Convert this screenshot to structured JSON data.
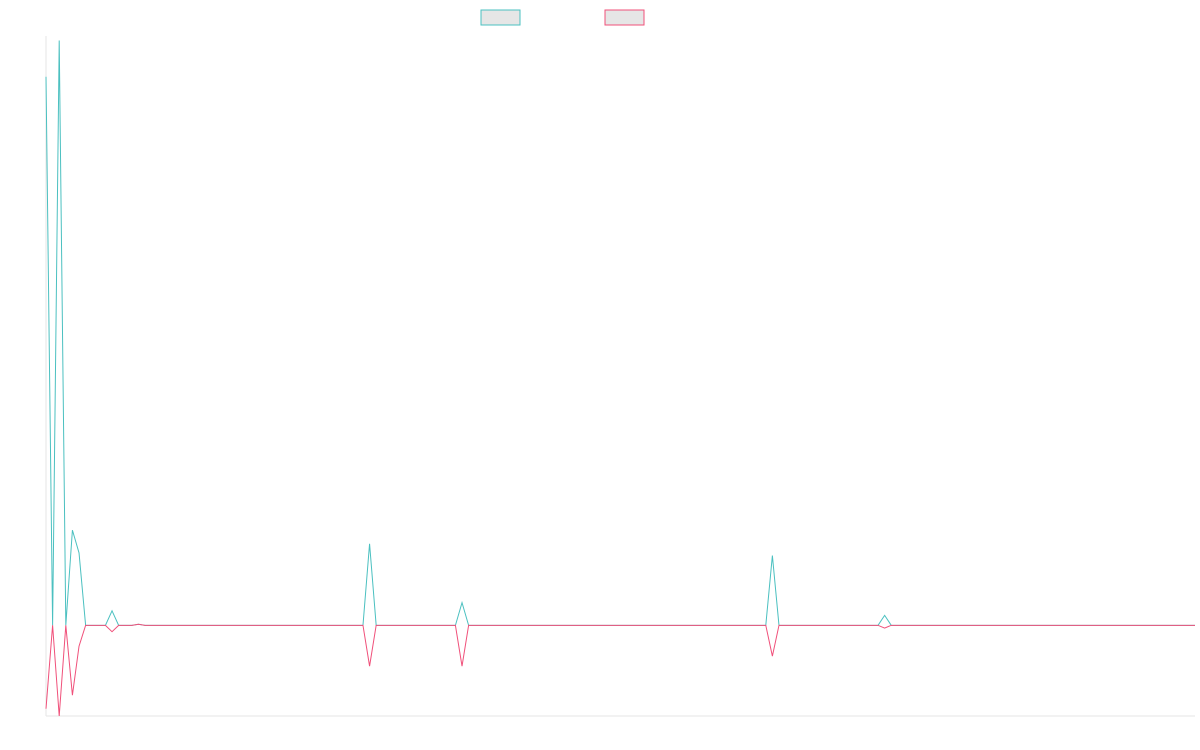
{
  "chart_data": {
    "type": "line",
    "title": "",
    "xlabel": "",
    "ylabel": "",
    "grid": false,
    "legend_position": "top-center",
    "ylim": [
      -100,
      650
    ],
    "series": [
      {
        "color": "#4bc0c0",
        "legend_fill": "#e6e6e6",
        "values": [
          605,
          0,
          645,
          0,
          105,
          80,
          0,
          0,
          0,
          0,
          16,
          0,
          0,
          0,
          1.2,
          0,
          0,
          0,
          0,
          0,
          0,
          0,
          0,
          0,
          0,
          0,
          0,
          0,
          0,
          0,
          0,
          0,
          0,
          0,
          0,
          0,
          0,
          0,
          0,
          0,
          0,
          0,
          0,
          0,
          0,
          0,
          0,
          0,
          0,
          90,
          0,
          0,
          0,
          0,
          0,
          0,
          0,
          0,
          0,
          0,
          0,
          0,
          0,
          25,
          0,
          0,
          0,
          0,
          0,
          0,
          0,
          0,
          0,
          0,
          0,
          0,
          0,
          0,
          0,
          0,
          0,
          0,
          0,
          0,
          0,
          0,
          0,
          0,
          0,
          0,
          0,
          0,
          0,
          0,
          0,
          0,
          0,
          0,
          0,
          0,
          0,
          0,
          0,
          0,
          0,
          0,
          0,
          0,
          0,
          0,
          77,
          0,
          0,
          0,
          0,
          0,
          0,
          0,
          0,
          0,
          0,
          0,
          0,
          0,
          0,
          0,
          0,
          11,
          0,
          0,
          0,
          0,
          0,
          0,
          0,
          0,
          0,
          0,
          0,
          0,
          0,
          0,
          0,
          0,
          0,
          0,
          0,
          0,
          0,
          0,
          0,
          0,
          0,
          0,
          0,
          0,
          0,
          0,
          0,
          0,
          0,
          0,
          0,
          0,
          0,
          0,
          0,
          0,
          0,
          0,
          0,
          0,
          0,
          0,
          0
        ]
      },
      {
        "color": "#f0507a",
        "legend_fill": "#e6e6e6",
        "values": [
          -92,
          0,
          -100,
          0,
          -77,
          -23,
          0,
          0,
          0,
          0,
          -7,
          0,
          0,
          0,
          1.2,
          0,
          0,
          0,
          0,
          0,
          0,
          0,
          0,
          0,
          0,
          0,
          0,
          0,
          0,
          0,
          0,
          0,
          0,
          0,
          0,
          0,
          0,
          0,
          0,
          0,
          0,
          0,
          0,
          0,
          0,
          0,
          0,
          0,
          0,
          -45,
          0,
          0,
          0,
          0,
          0,
          0,
          0,
          0,
          0,
          0,
          0,
          0,
          0,
          -45,
          0,
          0,
          0,
          0,
          0,
          0,
          0,
          0,
          0,
          0,
          0,
          0,
          0,
          0,
          0,
          0,
          0,
          0,
          0,
          0,
          0,
          0,
          0,
          0,
          0,
          0,
          0,
          0,
          0,
          0,
          0,
          0,
          0,
          0,
          0,
          0,
          0,
          0,
          0,
          0,
          0,
          0,
          0,
          0,
          0,
          0,
          -34,
          0,
          0,
          0,
          0,
          0,
          0,
          0,
          0,
          0,
          0,
          0,
          0,
          0,
          0,
          0,
          0,
          -3,
          0,
          0,
          0,
          0,
          0,
          0,
          0,
          0,
          0,
          0,
          0,
          0,
          0,
          0,
          0,
          0,
          0,
          0,
          0,
          0,
          0,
          0,
          0,
          0,
          0,
          0,
          0,
          0,
          0,
          0,
          0,
          0,
          0,
          0,
          0,
          0,
          0,
          0,
          0,
          0,
          0,
          0,
          0,
          0,
          0,
          0,
          0
        ]
      }
    ]
  }
}
